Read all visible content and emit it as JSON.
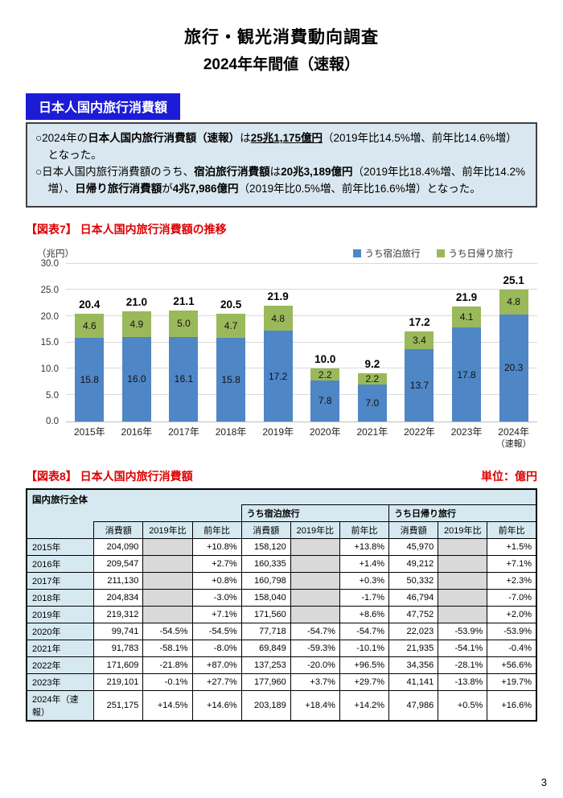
{
  "page": {
    "title": "旅行・観光消費動向調査",
    "subtitle": "2024年年間値（速報）",
    "page_number": "3"
  },
  "section_label": "日本人国内旅行消費額",
  "summary": {
    "bullets": [
      {
        "segments": [
          {
            "t": "○2024年の"
          },
          {
            "t": "日本人国内旅行消費額（速報）",
            "b": true
          },
          {
            "t": "は"
          },
          {
            "t": "25兆1,175億円",
            "b": true,
            "u": true
          },
          {
            "t": "（2019年比14.5%増、前年比14.6%増）となった。"
          }
        ]
      },
      {
        "segments": [
          {
            "t": "○日本人国内旅行消費額のうち、"
          },
          {
            "t": "宿泊旅行消費額",
            "b": true
          },
          {
            "t": "は"
          },
          {
            "t": "20兆3,189億円",
            "b": true
          },
          {
            "t": "（2019年比18.4%増、前年比14.2%増）、"
          },
          {
            "t": "日帰り旅行消費額",
            "b": true
          },
          {
            "t": "が"
          },
          {
            "t": "4兆7,986億円",
            "b": true
          },
          {
            "t": "（2019年比0.5%増、前年比16.6%増）となった。"
          }
        ]
      }
    ]
  },
  "chart_section": {
    "heading": "【図表7】 日本人国内旅行消費額の推移"
  },
  "chart_data": {
    "type": "bar",
    "stacked": true,
    "title": "日本人国内旅行消費額の推移",
    "unit_label": "（兆円）",
    "categories": [
      {
        "label": "2015年"
      },
      {
        "label": "2016年"
      },
      {
        "label": "2017年"
      },
      {
        "label": "2018年"
      },
      {
        "label": "2019年"
      },
      {
        "label": "2020年"
      },
      {
        "label": "2021年"
      },
      {
        "label": "2022年"
      },
      {
        "label": "2023年"
      },
      {
        "label": "2024年",
        "sub": "（速報）"
      }
    ],
    "series": [
      {
        "name": "うち宿泊旅行",
        "color": "#4f86c6",
        "values": [
          15.8,
          16.0,
          16.1,
          15.8,
          17.2,
          7.8,
          7.0,
          13.7,
          17.8,
          20.3
        ]
      },
      {
        "name": "うち日帰り旅行",
        "color": "#9ab95a",
        "values": [
          4.6,
          4.9,
          5.0,
          4.7,
          4.8,
          2.2,
          2.2,
          3.4,
          4.1,
          4.8
        ]
      }
    ],
    "totals": [
      20.4,
      21.0,
      21.1,
      20.5,
      21.9,
      10.0,
      9.2,
      17.2,
      21.9,
      25.1
    ],
    "ylim": [
      0,
      30
    ],
    "yticks": [
      0,
      5,
      10,
      15,
      20,
      25,
      30
    ],
    "grid": true,
    "legend_position": "top-right"
  },
  "table_section": {
    "heading": "【図表8】 日本人国内旅行消費額",
    "unit_label": "単位：億円"
  },
  "table_data": {
    "group_label": "国内旅行全体",
    "groups": [
      "うち宿泊旅行",
      "うち日帰り旅行"
    ],
    "col_headers": [
      "消費額",
      "2019年比",
      "前年比"
    ],
    "rows": [
      {
        "year": "2015年",
        "cells": [
          "204,090",
          "",
          "+10.8%",
          "158,120",
          "",
          "+13.8%",
          "45,970",
          "",
          "+1.5%"
        ]
      },
      {
        "year": "2016年",
        "cells": [
          "209,547",
          "",
          "+2.7%",
          "160,335",
          "",
          "+1.4%",
          "49,212",
          "",
          "+7.1%"
        ]
      },
      {
        "year": "2017年",
        "cells": [
          "211,130",
          "",
          "+0.8%",
          "160,798",
          "",
          "+0.3%",
          "50,332",
          "",
          "+2.3%"
        ]
      },
      {
        "year": "2018年",
        "cells": [
          "204,834",
          "",
          "-3.0%",
          "158,040",
          "",
          "-1.7%",
          "46,794",
          "",
          "-7.0%"
        ]
      },
      {
        "year": "2019年",
        "cells": [
          "219,312",
          "",
          "+7.1%",
          "171,560",
          "",
          "+8.6%",
          "47,752",
          "",
          "+2.0%"
        ]
      },
      {
        "year": "2020年",
        "cells": [
          "99,741",
          "-54.5%",
          "-54.5%",
          "77,718",
          "-54.7%",
          "-54.7%",
          "22,023",
          "-53.9%",
          "-53.9%"
        ]
      },
      {
        "year": "2021年",
        "cells": [
          "91,783",
          "-58.1%",
          "-8.0%",
          "69,849",
          "-59.3%",
          "-10.1%",
          "21,935",
          "-54.1%",
          "-0.4%"
        ]
      },
      {
        "year": "2022年",
        "cells": [
          "171,609",
          "-21.8%",
          "+87.0%",
          "137,253",
          "-20.0%",
          "+96.5%",
          "34,356",
          "-28.1%",
          "+56.6%"
        ]
      },
      {
        "year": "2023年",
        "cells": [
          "219,101",
          "-0.1%",
          "+27.7%",
          "177,960",
          "+3.7%",
          "+29.7%",
          "41,141",
          "-13.8%",
          "+19.7%"
        ]
      },
      {
        "year": "2024年（速報）",
        "cells": [
          "251,175",
          "+14.5%",
          "+14.6%",
          "203,189",
          "+18.4%",
          "+14.2%",
          "47,986",
          "+0.5%",
          "+16.6%"
        ]
      }
    ]
  },
  "colors": {
    "section_label_bg": "#1c1cd6",
    "summary_box_bg": "#d9e8f0",
    "summary_box_border": "#3f3f3f",
    "heading_red": "#dd0000",
    "bar_overnight_blue": "#4f86c6",
    "bar_daytrip_green": "#9ab95a",
    "table_header_bg": "#d6e9f0",
    "empty_cell_gray": "#d9d9d9"
  }
}
